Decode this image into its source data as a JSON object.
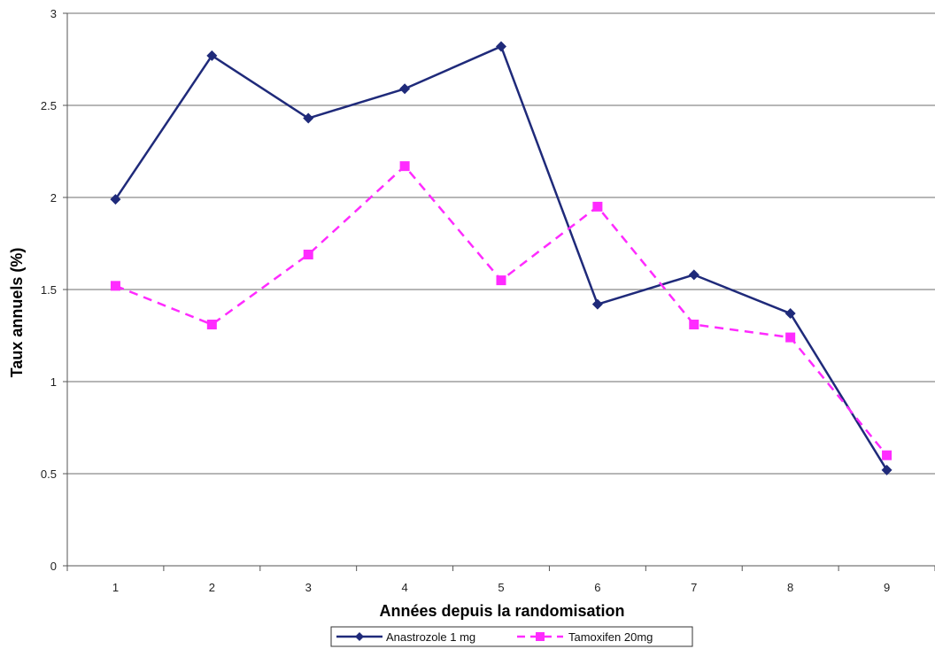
{
  "chart_data": {
    "type": "line",
    "title": "",
    "xlabel": "Années depuis la randomisation",
    "ylabel": "Taux annuels (%)",
    "categories": [
      "1",
      "2",
      "3",
      "4",
      "5",
      "6",
      "7",
      "8",
      "9"
    ],
    "ylim": [
      0,
      3
    ],
    "yticks": [
      "0",
      "0.5",
      "1",
      "1.5",
      "2",
      "2.5",
      "3"
    ],
    "grid": true,
    "legend_position": "bottom",
    "series": [
      {
        "name": "Anastrozole 1 mg",
        "values": [
          1.99,
          2.77,
          2.43,
          2.59,
          2.82,
          1.42,
          1.58,
          1.37,
          0.52
        ],
        "color": "#1f2a7a",
        "line_style": "solid",
        "marker": "diamond"
      },
      {
        "name": "Tamoxifen 20mg",
        "values": [
          1.52,
          1.31,
          1.69,
          2.17,
          1.55,
          1.95,
          1.31,
          1.24,
          0.6
        ],
        "color": "#ff2bff",
        "line_style": "dashed",
        "marker": "square"
      }
    ]
  }
}
